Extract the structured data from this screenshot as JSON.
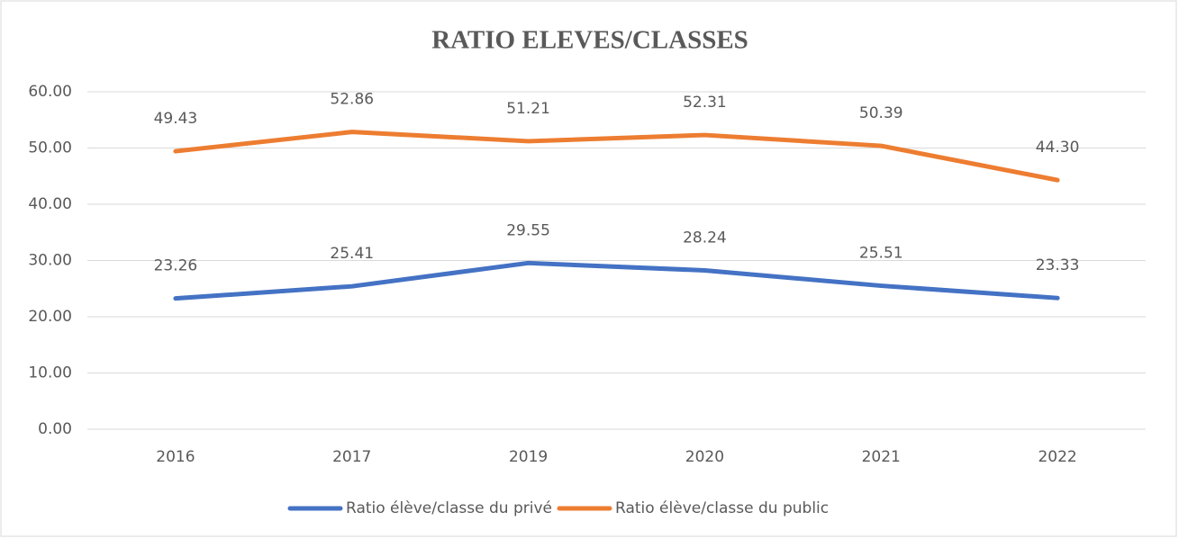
{
  "chart_data": {
    "type": "line",
    "title": "RATIO ELEVES/CLASSES",
    "categories": [
      "2016",
      "2017",
      "2019",
      "2020",
      "2021",
      "2022"
    ],
    "series": [
      {
        "name": "Ratio élève/classe du privé",
        "color": "#4472c4",
        "values": [
          23.26,
          25.41,
          29.55,
          28.24,
          25.51,
          23.33
        ],
        "value_labels": [
          "23.26",
          "25.41",
          "29.55",
          "28.24",
          "25.51",
          "23.33"
        ]
      },
      {
        "name": "Ratio élève/classe du public",
        "color": "#ed7d31",
        "values": [
          49.43,
          52.86,
          51.21,
          52.31,
          50.39,
          44.3
        ],
        "value_labels": [
          "49.43",
          "52.86",
          "51.21",
          "52.31",
          "50.39",
          "44.30"
        ]
      }
    ],
    "ylim": [
      0,
      60
    ],
    "yticks": [
      {
        "value": 0,
        "label": "0.00"
      },
      {
        "value": 10,
        "label": "10.00"
      },
      {
        "value": 20,
        "label": "20.00"
      },
      {
        "value": 30,
        "label": "30.00"
      },
      {
        "value": 40,
        "label": "40.00"
      },
      {
        "value": 50,
        "label": "50.00"
      },
      {
        "value": 60,
        "label": "60.00"
      }
    ],
    "grid": true,
    "legend": "bottom"
  }
}
